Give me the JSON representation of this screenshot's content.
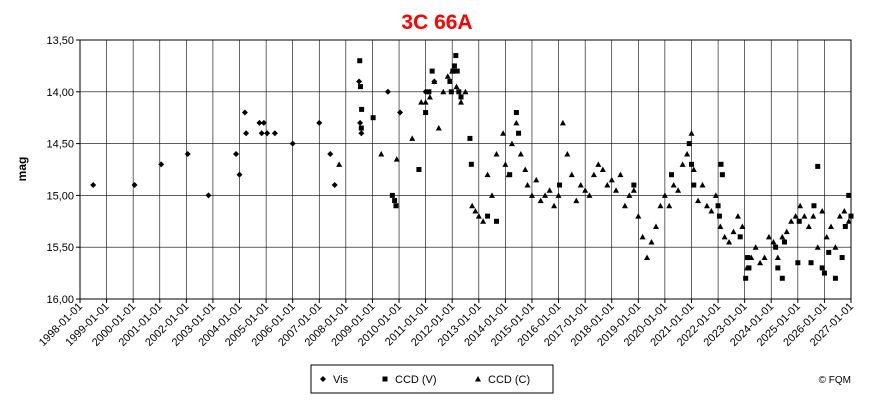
{
  "chart_data": {
    "type": "scatter",
    "title": "3C 66A",
    "title_color": "#ff0000",
    "xlabel": "",
    "ylabel": "mag",
    "ylim": [
      16.0,
      13.5
    ],
    "y_inverted": true,
    "grid": true,
    "x_range": [
      "1998-01-01",
      "2027-01-01"
    ],
    "x_ticks": [
      "1998-01-01",
      "1999-01-01",
      "2000-01-01",
      "2001-01-01",
      "2002-01-01",
      "2003-01-01",
      "2004-01-01",
      "2005-01-01",
      "2006-01-01",
      "2007-01-01",
      "2008-01-01",
      "2009-01-01",
      "2010-01-01",
      "2011-01-01",
      "2012-01-01",
      "2013-01-01",
      "2014-01-01",
      "2015-01-01",
      "2016-01-01",
      "2017-01-01",
      "2018-01-01",
      "2019-01-01",
      "2020-01-01",
      "2021-01-01",
      "2022-01-01",
      "2023-01-01",
      "2024-01-01",
      "2025-01-01",
      "2026-01-01",
      "2027-01-01"
    ],
    "y_ticks": [
      "13,50",
      "14,00",
      "14,50",
      "15,00",
      "15,50",
      "16,00"
    ],
    "legend_position": "bottom-center",
    "credit": "© FQM",
    "series": [
      {
        "name": "Vis",
        "marker": "diamond",
        "points": [
          [
            "1998-07-01",
            14.9
          ],
          [
            "2000-01-20",
            14.9
          ],
          [
            "2001-01-20",
            14.7
          ],
          [
            "2002-01-20",
            14.6
          ],
          [
            "2002-11-01",
            15.0
          ],
          [
            "2003-11-15",
            14.6
          ],
          [
            "2004-01-01",
            14.8
          ],
          [
            "2004-03-15",
            14.2
          ],
          [
            "2004-04-01",
            14.4
          ],
          [
            "2004-10-01",
            14.3
          ],
          [
            "2004-11-01",
            14.4
          ],
          [
            "2004-12-01",
            14.3
          ],
          [
            "2005-01-15",
            14.4
          ],
          [
            "2005-05-01",
            14.4
          ],
          [
            "2006-01-01",
            14.5
          ],
          [
            "2007-01-01",
            14.3
          ],
          [
            "2007-06-01",
            14.6
          ],
          [
            "2007-08-01",
            14.9
          ],
          [
            "2008-07-01",
            13.9
          ],
          [
            "2008-07-15",
            14.3
          ],
          [
            "2008-08-01",
            14.4
          ],
          [
            "2009-08-01",
            14.0
          ],
          [
            "2010-01-15",
            14.2
          ],
          [
            "2011-01-01",
            14.0
          ],
          [
            "2011-05-01",
            13.9
          ]
        ]
      },
      {
        "name": "CCD (V)",
        "marker": "square",
        "points": [
          [
            "2008-07-10",
            13.7
          ],
          [
            "2008-07-20",
            13.95
          ],
          [
            "2008-08-01",
            14.35
          ],
          [
            "2008-08-05",
            14.17
          ],
          [
            "2009-01-10",
            14.25
          ],
          [
            "2009-10-01",
            15.0
          ],
          [
            "2009-11-01",
            15.05
          ],
          [
            "2009-11-20",
            15.1
          ],
          [
            "2010-10-01",
            14.75
          ],
          [
            "2011-01-01",
            14.2
          ],
          [
            "2011-02-15",
            14.0
          ],
          [
            "2011-04-01",
            13.8
          ],
          [
            "2011-12-01",
            13.9
          ],
          [
            "2011-12-20",
            14.0
          ],
          [
            "2012-01-10",
            13.8
          ],
          [
            "2012-02-01",
            13.75
          ],
          [
            "2012-02-20",
            13.65
          ],
          [
            "2012-03-10",
            13.8
          ],
          [
            "2012-04-01",
            14.0
          ],
          [
            "2012-05-01",
            14.05
          ],
          [
            "2012-09-01",
            14.45
          ],
          [
            "2012-09-20",
            14.7
          ],
          [
            "2013-05-01",
            15.2
          ],
          [
            "2013-09-01",
            15.25
          ],
          [
            "2014-03-01",
            14.8
          ],
          [
            "2014-06-01",
            14.2
          ],
          [
            "2014-07-01",
            14.4
          ],
          [
            "2016-01-15",
            14.9
          ],
          [
            "2018-11-01",
            14.9
          ],
          [
            "2020-04-01",
            14.8
          ],
          [
            "2020-12-01",
            14.5
          ],
          [
            "2021-01-01",
            14.7
          ],
          [
            "2021-02-01",
            14.9
          ],
          [
            "2022-01-01",
            15.1
          ],
          [
            "2022-01-20",
            15.2
          ],
          [
            "2022-02-10",
            14.7
          ],
          [
            "2022-03-01",
            14.8
          ],
          [
            "2022-11-01",
            15.4
          ],
          [
            "2023-01-15",
            15.8
          ],
          [
            "2023-02-10",
            15.6
          ],
          [
            "2023-03-01",
            15.7
          ],
          [
            "2024-03-01",
            15.5
          ],
          [
            "2024-04-01",
            15.7
          ],
          [
            "2024-06-01",
            15.8
          ],
          [
            "2024-07-01",
            15.45
          ],
          [
            "2025-01-01",
            15.65
          ],
          [
            "2025-01-20",
            15.25
          ],
          [
            "2025-07-01",
            15.65
          ],
          [
            "2025-08-10",
            15.1
          ],
          [
            "2025-10-01",
            14.72
          ],
          [
            "2025-12-01",
            15.7
          ],
          [
            "2026-01-01",
            15.75
          ],
          [
            "2026-03-01",
            15.55
          ],
          [
            "2026-06-01",
            15.8
          ],
          [
            "2026-09-01",
            15.6
          ],
          [
            "2026-10-15",
            15.3
          ],
          [
            "2026-12-01",
            15.0
          ],
          [
            "2027-01-01",
            15.2
          ]
        ]
      },
      {
        "name": "CCD (C)",
        "marker": "triangle",
        "points": [
          [
            "2007-10-01",
            14.7
          ],
          [
            "2009-05-01",
            14.6
          ],
          [
            "2009-12-01",
            14.65
          ],
          [
            "2010-07-01",
            14.45
          ],
          [
            "2010-11-01",
            14.1
          ],
          [
            "2011-01-01",
            14.1
          ],
          [
            "2011-03-01",
            14.05
          ],
          [
            "2011-05-01",
            13.9
          ],
          [
            "2011-07-01",
            14.35
          ],
          [
            "2011-09-01",
            14.0
          ],
          [
            "2011-11-01",
            13.85
          ],
          [
            "2012-01-01",
            13.8
          ],
          [
            "2012-03-01",
            13.95
          ],
          [
            "2012-05-01",
            14.1
          ],
          [
            "2012-07-01",
            14.0
          ],
          [
            "2012-10-01",
            15.1
          ],
          [
            "2012-11-15",
            15.15
          ],
          [
            "2013-01-01",
            15.2
          ],
          [
            "2013-03-01",
            15.25
          ],
          [
            "2013-05-01",
            14.8
          ],
          [
            "2013-07-01",
            15.0
          ],
          [
            "2013-09-01",
            14.6
          ],
          [
            "2013-12-01",
            14.4
          ],
          [
            "2014-01-01",
            14.7
          ],
          [
            "2014-02-15",
            14.8
          ],
          [
            "2014-04-01",
            14.5
          ],
          [
            "2014-06-01",
            14.3
          ],
          [
            "2014-08-01",
            14.6
          ],
          [
            "2014-10-01",
            14.75
          ],
          [
            "2014-11-01",
            14.9
          ],
          [
            "2015-01-01",
            15.0
          ],
          [
            "2015-03-01",
            14.85
          ],
          [
            "2015-05-01",
            15.05
          ],
          [
            "2015-07-01",
            15.0
          ],
          [
            "2015-09-01",
            14.95
          ],
          [
            "2015-11-01",
            15.1
          ],
          [
            "2016-01-01",
            15.0
          ],
          [
            "2016-03-01",
            14.3
          ],
          [
            "2016-05-01",
            14.6
          ],
          [
            "2016-07-01",
            14.8
          ],
          [
            "2016-09-01",
            15.05
          ],
          [
            "2016-11-01",
            14.9
          ],
          [
            "2017-01-01",
            14.95
          ],
          [
            "2017-03-01",
            15.0
          ],
          [
            "2017-05-01",
            14.8
          ],
          [
            "2017-07-01",
            14.7
          ],
          [
            "2017-09-01",
            14.75
          ],
          [
            "2017-11-01",
            14.9
          ],
          [
            "2018-01-01",
            14.85
          ],
          [
            "2018-03-01",
            14.95
          ],
          [
            "2018-05-01",
            14.8
          ],
          [
            "2018-07-01",
            15.1
          ],
          [
            "2018-09-01",
            15.0
          ],
          [
            "2018-11-01",
            14.95
          ],
          [
            "2019-01-01",
            15.2
          ],
          [
            "2019-03-01",
            15.4
          ],
          [
            "2019-05-01",
            15.6
          ],
          [
            "2019-07-01",
            15.45
          ],
          [
            "2019-09-01",
            15.3
          ],
          [
            "2019-11-01",
            15.1
          ],
          [
            "2020-01-01",
            15.0
          ],
          [
            "2020-03-01",
            15.1
          ],
          [
            "2020-05-01",
            14.9
          ],
          [
            "2020-07-01",
            14.95
          ],
          [
            "2020-09-01",
            14.7
          ],
          [
            "2020-11-01",
            14.6
          ],
          [
            "2021-01-01",
            14.4
          ],
          [
            "2021-02-01",
            14.75
          ],
          [
            "2021-04-01",
            15.05
          ],
          [
            "2021-06-01",
            14.9
          ],
          [
            "2021-08-01",
            15.1
          ],
          [
            "2021-10-01",
            15.15
          ],
          [
            "2021-12-01",
            15.0
          ],
          [
            "2022-02-01",
            15.3
          ],
          [
            "2022-04-01",
            15.4
          ],
          [
            "2022-06-01",
            15.45
          ],
          [
            "2022-08-01",
            15.35
          ],
          [
            "2022-10-01",
            15.2
          ],
          [
            "2022-12-01",
            15.3
          ],
          [
            "2023-02-01",
            15.7
          ],
          [
            "2023-04-01",
            15.6
          ],
          [
            "2023-06-01",
            15.5
          ],
          [
            "2023-08-01",
            15.65
          ],
          [
            "2023-10-01",
            15.6
          ],
          [
            "2023-12-01",
            15.4
          ],
          [
            "2024-02-01",
            15.45
          ],
          [
            "2024-04-01",
            15.6
          ],
          [
            "2024-06-01",
            15.4
          ],
          [
            "2024-08-01",
            15.35
          ],
          [
            "2024-10-01",
            15.25
          ],
          [
            "2024-12-01",
            15.2
          ],
          [
            "2025-02-01",
            15.1
          ],
          [
            "2025-04-01",
            15.2
          ],
          [
            "2025-06-01",
            15.3
          ],
          [
            "2025-08-01",
            15.2
          ],
          [
            "2025-10-01",
            15.5
          ],
          [
            "2025-12-01",
            15.15
          ],
          [
            "2026-02-01",
            15.4
          ],
          [
            "2026-04-01",
            15.3
          ],
          [
            "2026-06-01",
            15.5
          ],
          [
            "2026-08-01",
            15.2
          ],
          [
            "2026-10-01",
            15.15
          ],
          [
            "2026-12-01",
            15.25
          ]
        ]
      }
    ]
  }
}
